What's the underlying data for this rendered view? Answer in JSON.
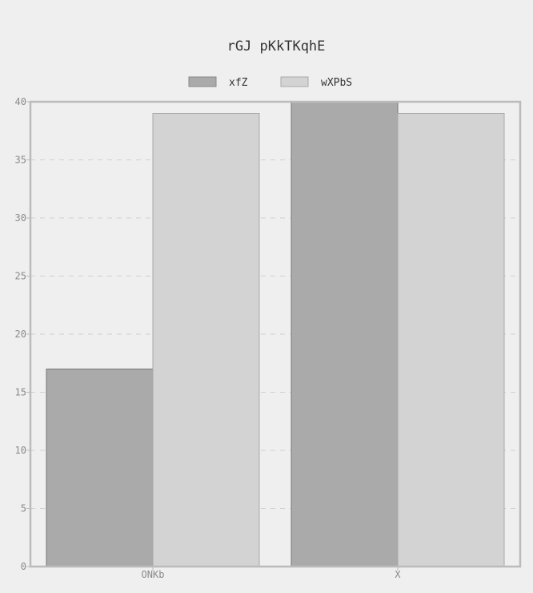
{
  "chart_data": {
    "type": "bar",
    "title": "rGJ pKkTKqhE",
    "categories": [
      "ONKb",
      "X"
    ],
    "series": [
      {
        "name": "xfZ",
        "values": [
          17,
          40
        ],
        "color": "#aaaaaa"
      },
      {
        "name": "wXPbS",
        "values": [
          39,
          39
        ],
        "color": "#d3d3d3"
      }
    ],
    "ylim": [
      0,
      40
    ],
    "yticks": [
      0,
      5,
      10,
      15,
      20,
      25,
      30,
      35,
      40
    ],
    "grid": true,
    "legend": "top-center"
  }
}
